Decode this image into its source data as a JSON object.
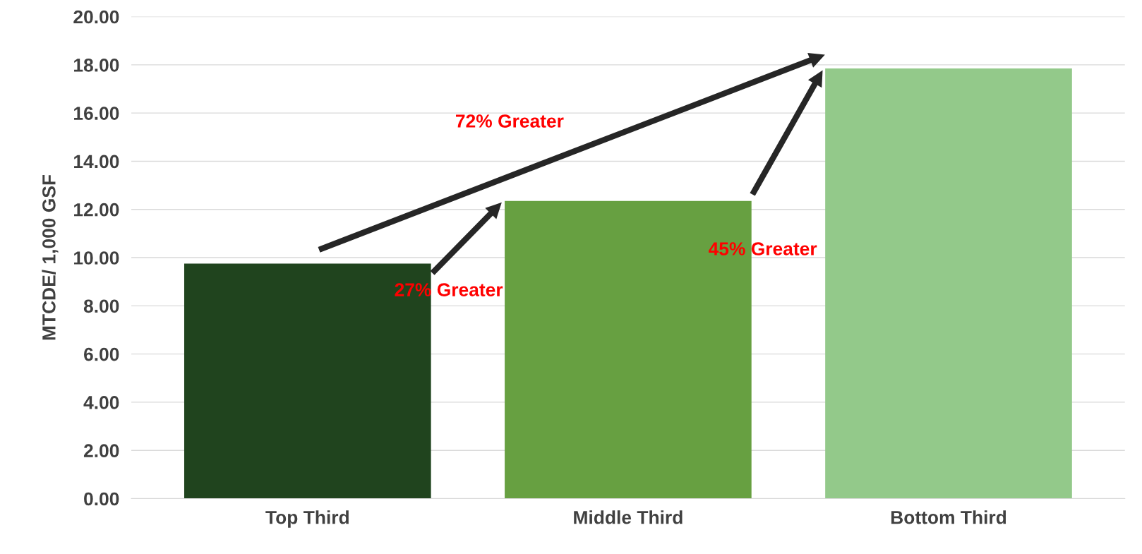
{
  "chart_data": {
    "type": "bar",
    "ylabel": "MTCDE/ 1,000 GSF",
    "categories": [
      "Top Third",
      "Middle Third",
      "Bottom Third"
    ],
    "values": [
      9.75,
      12.35,
      17.85
    ],
    "colors": [
      "#20441e",
      "#67a041",
      "#93c98a"
    ],
    "ylim": [
      0,
      20
    ],
    "yticks": [
      {
        "value": 0,
        "label": "0.00"
      },
      {
        "value": 2,
        "label": "2.00"
      },
      {
        "value": 4,
        "label": "4.00"
      },
      {
        "value": 6,
        "label": "6.00"
      },
      {
        "value": 8,
        "label": "8.00"
      },
      {
        "value": 10,
        "label": "10.00"
      },
      {
        "value": 12,
        "label": "12.00"
      },
      {
        "value": 14,
        "label": "14.00"
      },
      {
        "value": 16,
        "label": "16.00"
      },
      {
        "value": 18,
        "label": "18.00"
      },
      {
        "value": 20,
        "label": "20.00"
      }
    ],
    "grid": "y",
    "annotations": [
      "72% Greater",
      "27% Greater",
      "45% Greater"
    ]
  }
}
